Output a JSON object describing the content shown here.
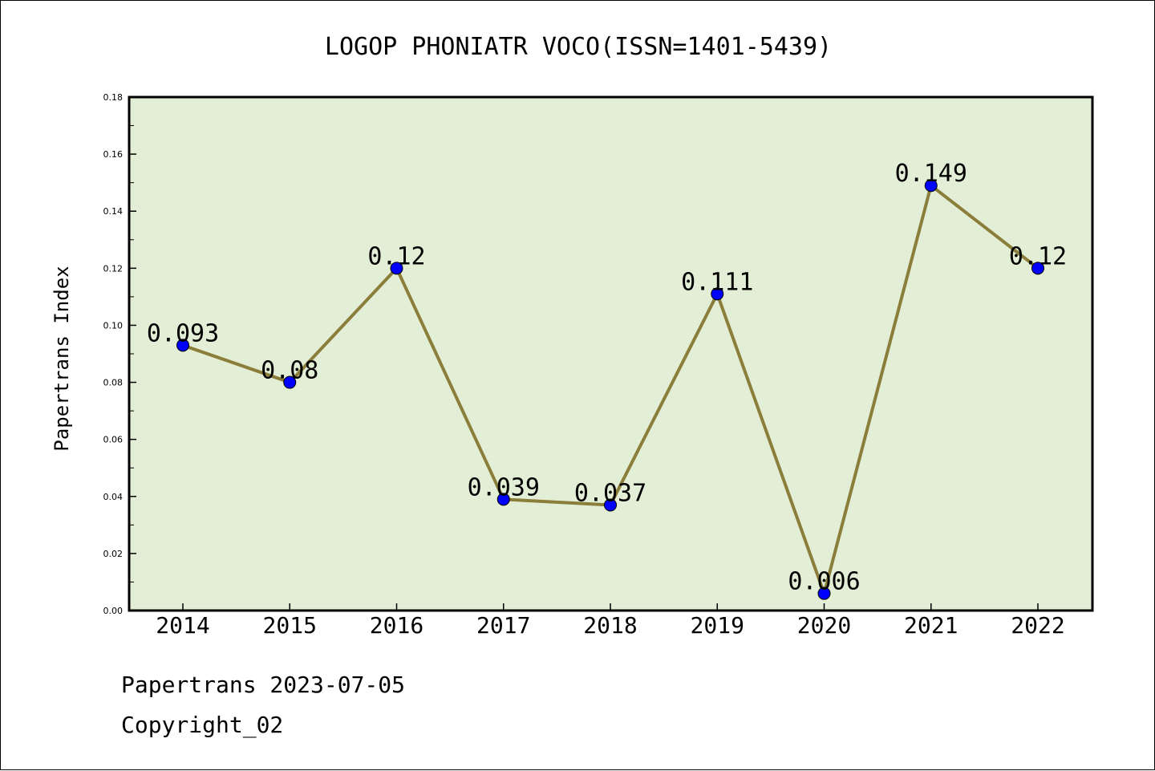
{
  "chart_data": {
    "type": "line",
    "title": "LOGOP PHONIATR VOCO(ISSN=1401-5439)",
    "xlabel": "",
    "ylabel": "Papertrans Index",
    "categories": [
      "2014",
      "2015",
      "2016",
      "2017",
      "2018",
      "2019",
      "2020",
      "2021",
      "2022"
    ],
    "values": [
      0.093,
      0.08,
      0.12,
      0.039,
      0.037,
      0.111,
      0.006,
      0.149,
      0.12
    ],
    "data_labels": [
      "0.093",
      "0.08",
      "0.12",
      "0.039",
      "0.037",
      "0.111",
      "0.006",
      "0.149",
      "0.12"
    ],
    "ylim": [
      0,
      0.18
    ],
    "yticks": [
      "0.00",
      "0.02",
      "0.04",
      "0.06",
      "0.08",
      "0.10",
      "0.12",
      "0.14",
      "0.16",
      "0.18"
    ],
    "grid": false,
    "legend": "none",
    "colors": {
      "plot_background": "#e2efd6",
      "line": "#8b7d3a",
      "marker": "#0000ff",
      "marker_edge": "#000000"
    }
  },
  "footer": {
    "line1": "Papertrans 2023-07-05",
    "line2": "Copyright_02"
  }
}
